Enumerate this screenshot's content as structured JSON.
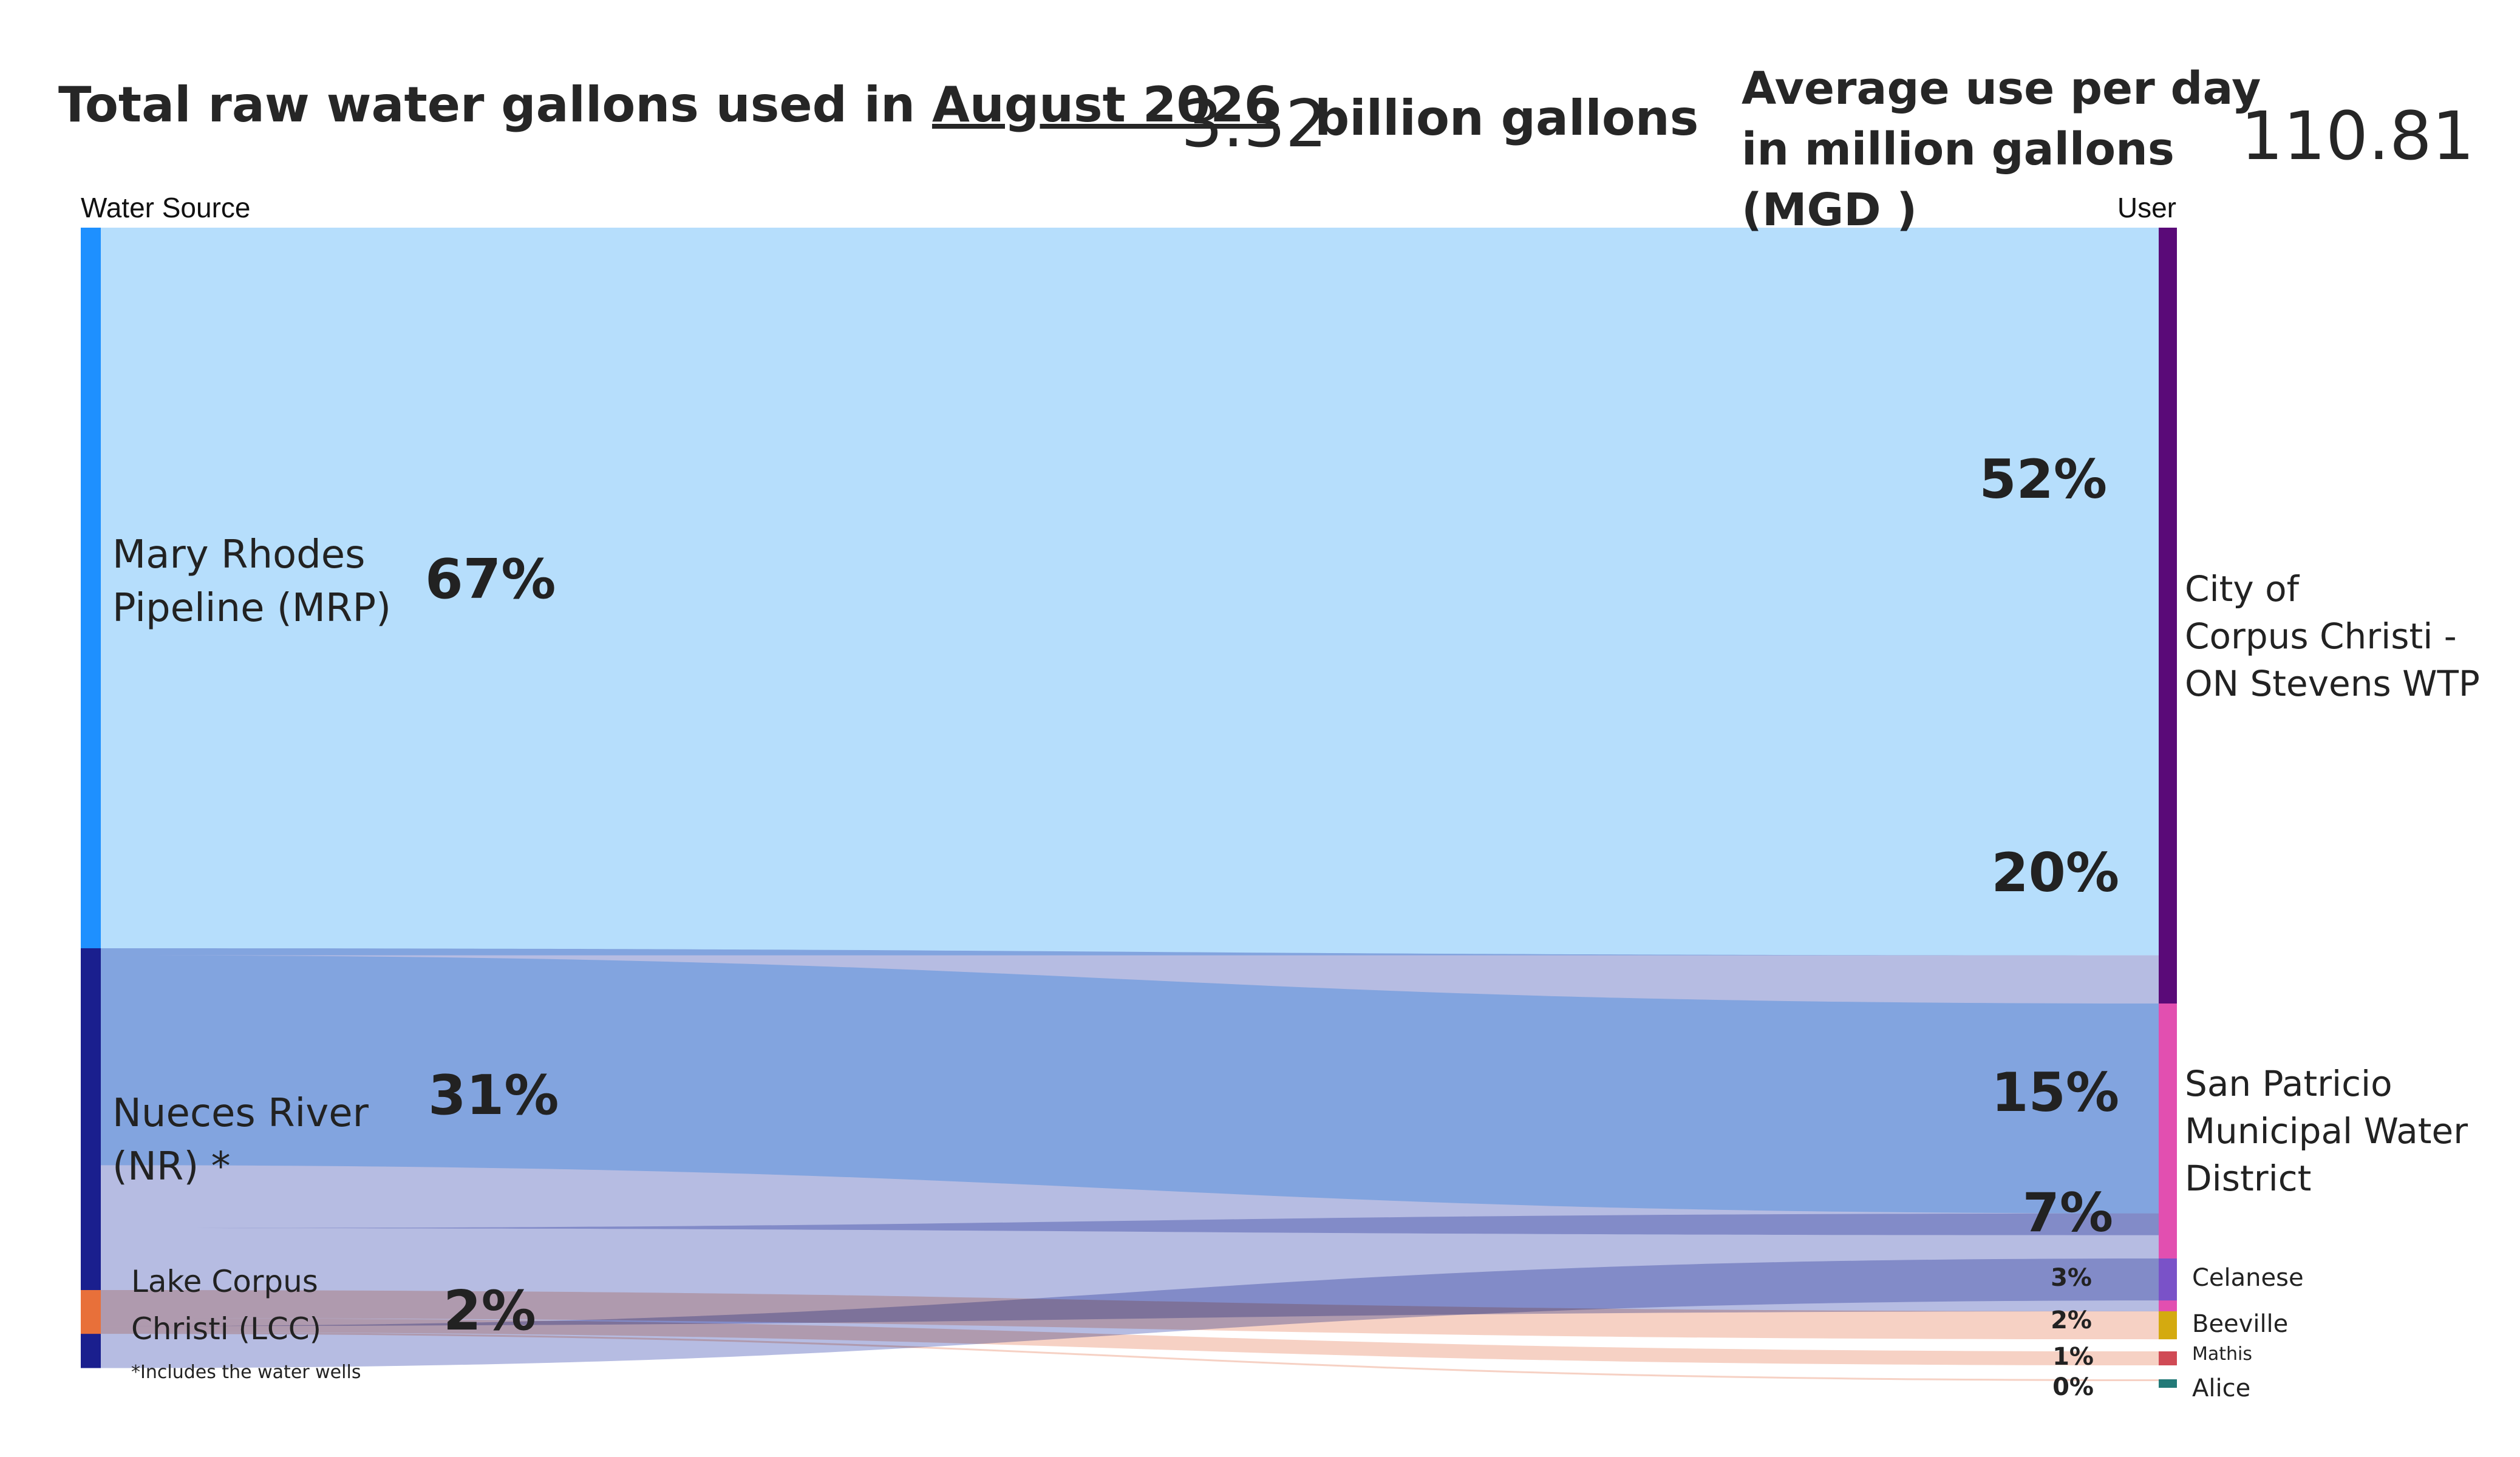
{
  "header": {
    "title_prefix": "Total raw water gallons used in ",
    "title_month": "August 2026",
    "total_value": "3.32",
    "total_unit": "billion gallons",
    "avg_label": "Average use per day in million gallons (MGD )",
    "avg_value": "110.81"
  },
  "chart_data": {
    "type": "sankey",
    "source_column_label": "Water Source",
    "target_column_label": "User",
    "footnote": "*Includes the water wells",
    "sources": [
      {
        "id": "MRP",
        "label_lines": [
          "Mary Rhodes",
          "Pipeline (MRP)"
        ],
        "percent_label": "67%",
        "color": "#1E90FF"
      },
      {
        "id": "NR",
        "label_lines": [
          "Nueces River",
          "(NR) *"
        ],
        "percent_label": "31%",
        "color": "#1A1F8E"
      },
      {
        "id": "LCC",
        "label_lines": [
          "Lake Corpus",
          "Christi (LCC)"
        ],
        "percent_label": "2%",
        "color": "#E8703A"
      }
    ],
    "targets": [
      {
        "id": "CC",
        "label_lines": [
          "City of",
          "Corpus Christi -",
          "ON Stevens WTP"
        ],
        "color": "#5A0A78"
      },
      {
        "id": "SP",
        "label_lines": [
          "San Patricio",
          "Municipal Water",
          "District"
        ],
        "color": "#E24FB0"
      },
      {
        "id": "CEL",
        "label_lines": [
          "Celanese"
        ],
        "color": "#7A52C8"
      },
      {
        "id": "BEE",
        "label_lines": [
          "Beeville"
        ],
        "color": "#D4AA10"
      },
      {
        "id": "MAT",
        "label_lines": [
          "Mathis"
        ],
        "color": "#D04A55"
      },
      {
        "id": "ALI",
        "label_lines": [
          "Alice"
        ],
        "color": "#237A78"
      }
    ],
    "flows": [
      {
        "source": "MRP",
        "target": "CC",
        "percent": 52,
        "percent_label": "52%"
      },
      {
        "source": "MRP",
        "target": "SP",
        "percent": 15,
        "percent_label": "15%"
      },
      {
        "source": "NR",
        "target": "CC",
        "percent": 20,
        "percent_label": "20%"
      },
      {
        "source": "NR",
        "target": "SP",
        "percent": 7,
        "percent_label": "7%"
      },
      {
        "source": "NR",
        "target": "CEL",
        "percent": 3,
        "percent_label": "3%"
      },
      {
        "source": "LCC",
        "target": "BEE",
        "percent": 2,
        "percent_label": "2%"
      },
      {
        "source": "LCC",
        "target": "MAT",
        "percent": 1,
        "percent_label": "1%"
      },
      {
        "source": "LCC",
        "target": "ALI",
        "percent": 0,
        "percent_label": "0%"
      }
    ],
    "link_colors": {
      "MRP": "#B6DEFC",
      "NR": "#B6BCE2",
      "LCC": "#F6D1C4"
    }
  }
}
